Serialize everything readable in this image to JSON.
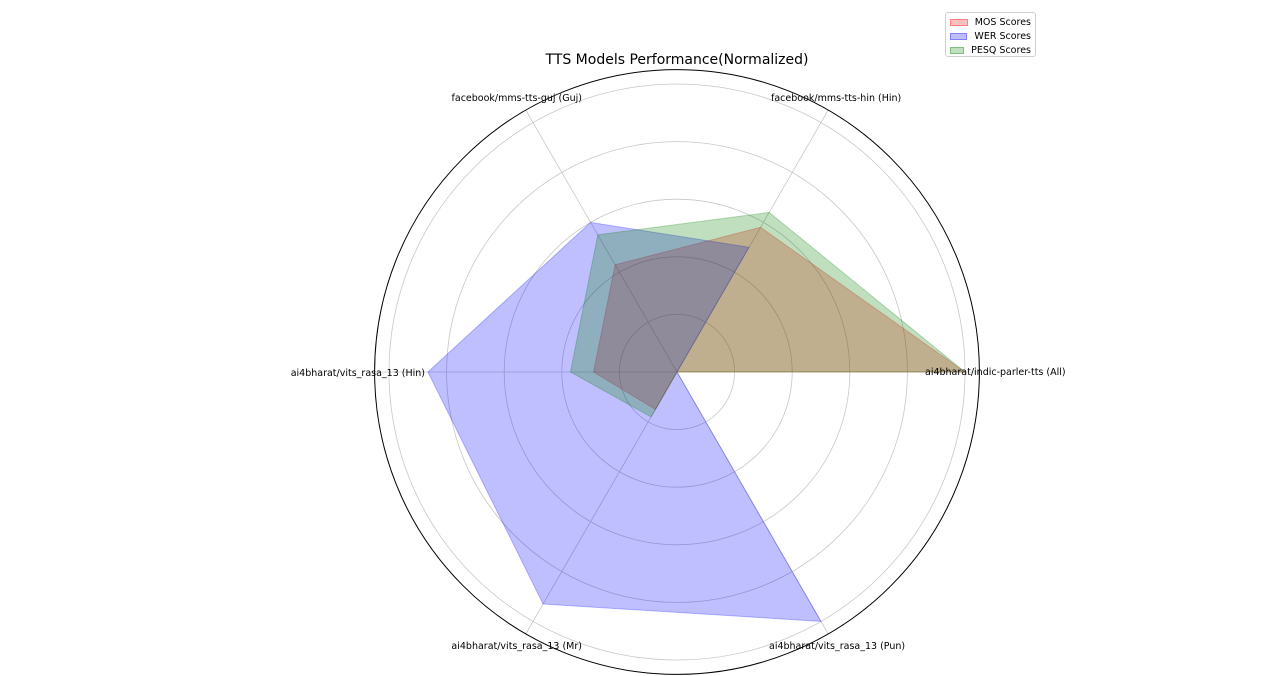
{
  "chart_data": {
    "type": "radar",
    "title": "TTS Models Performance(Normalized)",
    "categories": [
      "ai4bharat/indic-parler-tts (All)",
      "facebook/mms-tts-hin (Hin)",
      "facebook/mms-tts-guj (Guj)",
      "ai4bharat/vits_rasa_13 (Hin)",
      "ai4bharat/vits_rasa_13 (Mr)",
      "ai4bharat/vits_rasa_13 (Pun)"
    ],
    "angles_deg": [
      0,
      60,
      120,
      180,
      240,
      300
    ],
    "rlim": [
      0,
      1.05
    ],
    "rgrid": [
      0.2,
      0.4,
      0.6,
      0.8,
      1.0
    ],
    "rgrid_labels_visible": false,
    "grid": true,
    "legend_position": "upper right",
    "series": [
      {
        "name": "MOS Scores",
        "color": "#ff0000",
        "alpha": 0.25,
        "values": [
          1.0,
          0.58,
          0.43,
          0.29,
          0.15,
          0.0
        ]
      },
      {
        "name": "WER Scores",
        "color": "#0000ff",
        "alpha": 0.25,
        "values": [
          0.0,
          0.5,
          0.6,
          0.865,
          0.93,
          1.0
        ]
      },
      {
        "name": "PESQ Scores",
        "color": "#008000",
        "alpha": 0.25,
        "values": [
          1.0,
          0.64,
          0.55,
          0.37,
          0.18,
          0.0
        ]
      }
    ]
  },
  "legend": {
    "items": [
      {
        "label": "MOS Scores",
        "fill": "#ffbfbf",
        "edge": "#ff8080"
      },
      {
        "label": "WER Scores",
        "fill": "#bfbfff",
        "edge": "#8080ff"
      },
      {
        "label": "PESQ Scores",
        "fill": "#bfdfbf",
        "edge": "#80bf80"
      }
    ]
  }
}
